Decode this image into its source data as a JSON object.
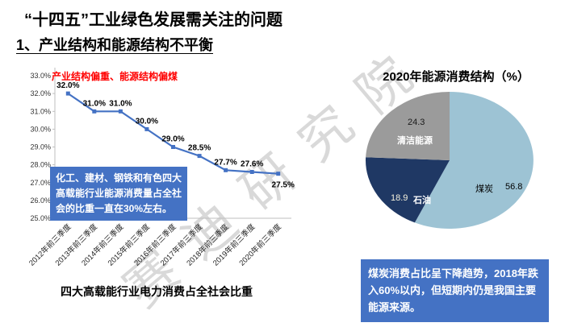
{
  "slide": {
    "title": "“十四五”工业绿色发展需关注的问题",
    "subtitle": "1、产业结构和能源结构不平衡"
  },
  "watermark": "赛迪研究院",
  "callouts": {
    "left": "化工、建材、钢铁和有色四大高载能行业能源消费量占全社会的比重一直在30%左右。",
    "right": "煤炭消费占比呈下降趋势，2018年跌入60%以内，但短期内仍是我国主要能源来源。"
  },
  "chart_data": [
    {
      "type": "line",
      "title": "四大高载能行业电力消费占全社会比重",
      "annotation": "产业结构偏重、能源结构偏煤",
      "categories": [
        "2012年前三季度",
        "2013年前三季度",
        "2014年前三季度",
        "2015年前三季度",
        "2016年前三季度",
        "2017年前三季度",
        "2018年前三季度",
        "2019年前三季度",
        "2020年前三季度"
      ],
      "values": [
        32.0,
        31.0,
        31.0,
        30.0,
        29.0,
        28.5,
        27.7,
        27.6,
        27.5
      ],
      "point_labels": [
        "32.0%",
        "31.0%",
        "31.0%",
        "30.0%",
        "29.0%",
        "28.5%",
        "27.7%",
        "27.6%",
        "27.5%"
      ],
      "xlabel": "",
      "ylabel": "",
      "ylim": [
        25.0,
        33.0
      ],
      "ytick_step": 1.0,
      "grid": false,
      "legend": "none",
      "line_color": "#4472C4"
    },
    {
      "type": "pie",
      "title": "2020年能源消费结构（%）",
      "start_angle_deg": 0,
      "direction": "clockwise",
      "slices": [
        {
          "label": "煤炭",
          "value": 56.8,
          "color": "#9DC3D4"
        },
        {
          "label": "石油",
          "value": 18.9,
          "color": "#1F3864"
        },
        {
          "label": "清洁能源",
          "value": 24.3,
          "color": "#9B9B9B"
        }
      ]
    }
  ]
}
